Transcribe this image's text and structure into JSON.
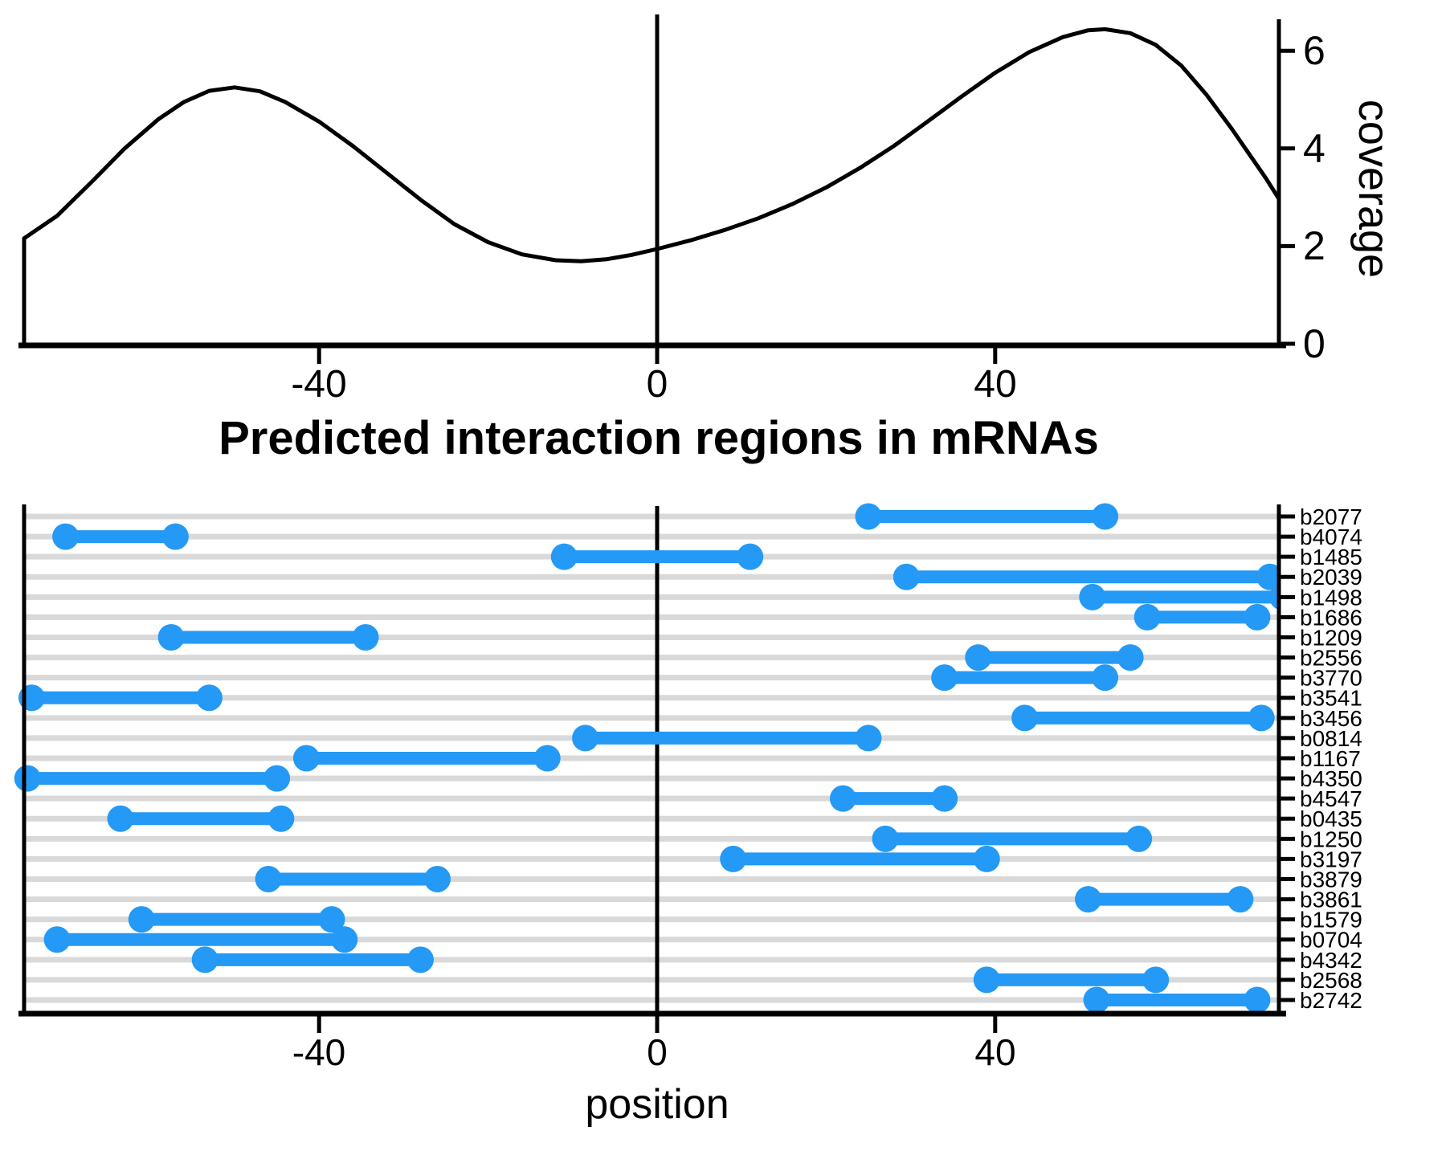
{
  "colors": {
    "segment_blue": "#2499F5",
    "grid_gray": "#D9D9D9",
    "axis_black": "#000000",
    "background": "#FFFFFF"
  },
  "chart_data": [
    {
      "type": "line",
      "panel": "top",
      "title": "",
      "xlabel": "",
      "ylabel": "coverage",
      "xlim": [
        -75,
        73.6
      ],
      "ylim": [
        0,
        6.9
      ],
      "grid": false,
      "x_ticks": [
        -40,
        0,
        40
      ],
      "x_tick_labels": [
        "-40",
        "0",
        "40"
      ],
      "y_ticks": [
        0,
        2,
        4,
        6
      ],
      "y_tick_labels": [
        "0",
        "2",
        "4",
        "6"
      ],
      "annotations": [
        "vertical reference line at position 0"
      ],
      "series": [
        {
          "name": "coverage",
          "x": [
            -74.9,
            -71,
            -67,
            -63,
            -59,
            -56,
            -53,
            -50,
            -47,
            -44,
            -40,
            -36,
            -32,
            -28,
            -24,
            -20,
            -16,
            -12,
            -9,
            -6,
            -3,
            0,
            4,
            8,
            12,
            16,
            20,
            24,
            28,
            32,
            36,
            40,
            44,
            48,
            51,
            53,
            56,
            59,
            62,
            65,
            68,
            70,
            72,
            73.6
          ],
          "y": [
            2.16,
            2.62,
            3.3,
            4.0,
            4.6,
            4.95,
            5.18,
            5.25,
            5.17,
            4.95,
            4.55,
            4.05,
            3.5,
            2.95,
            2.45,
            2.08,
            1.83,
            1.71,
            1.69,
            1.73,
            1.82,
            1.94,
            2.12,
            2.33,
            2.57,
            2.86,
            3.2,
            3.6,
            4.05,
            4.55,
            5.06,
            5.55,
            5.97,
            6.28,
            6.42,
            6.44,
            6.36,
            6.12,
            5.7,
            5.1,
            4.4,
            3.9,
            3.4,
            2.96
          ]
        }
      ]
    },
    {
      "type": "range-bar",
      "panel": "bottom",
      "title": "Predicted interaction regions in mRNAs",
      "xlabel": "position",
      "ylabel": "",
      "xlim": [
        -75,
        73.6
      ],
      "grid": true,
      "x_ticks": [
        -40,
        0,
        40
      ],
      "x_tick_labels": [
        "-40",
        "0",
        "40"
      ],
      "annotations": [
        "vertical reference line at position 0"
      ],
      "rows": [
        {
          "label": "b2077",
          "start": 25,
          "end": 53
        },
        {
          "label": "b4074",
          "start": -70,
          "end": -57
        },
        {
          "label": "b1485",
          "start": -11,
          "end": 11
        },
        {
          "label": "b2039",
          "start": 29.5,
          "end": 72.5
        },
        {
          "label": "b1498",
          "start": 51.5,
          "end": 74
        },
        {
          "label": "b1686",
          "start": 58,
          "end": 71
        },
        {
          "label": "b1209",
          "start": -57.5,
          "end": -34.5
        },
        {
          "label": "b2556",
          "start": 38,
          "end": 56
        },
        {
          "label": "b3770",
          "start": 34,
          "end": 53
        },
        {
          "label": "b3541",
          "start": -74,
          "end": -53
        },
        {
          "label": "b3456",
          "start": 43.5,
          "end": 71.5
        },
        {
          "label": "b0814",
          "start": -8.5,
          "end": 25
        },
        {
          "label": "b1167",
          "start": -41.5,
          "end": -13
        },
        {
          "label": "b4350",
          "start": -74.5,
          "end": -45
        },
        {
          "label": "b4547",
          "start": 22,
          "end": 34
        },
        {
          "label": "b0435",
          "start": -63.5,
          "end": -44.5
        },
        {
          "label": "b1250",
          "start": 27,
          "end": 57
        },
        {
          "label": "b3197",
          "start": 9,
          "end": 39
        },
        {
          "label": "b3879",
          "start": -46,
          "end": -26
        },
        {
          "label": "b3861",
          "start": 51,
          "end": 69
        },
        {
          "label": "b1579",
          "start": -61,
          "end": -38.5
        },
        {
          "label": "b0704",
          "start": -71,
          "end": -37
        },
        {
          "label": "b4342",
          "start": -53.5,
          "end": -28
        },
        {
          "label": "b2568",
          "start": 39,
          "end": 59
        },
        {
          "label": "b2742",
          "start": 52,
          "end": 71
        }
      ]
    }
  ]
}
